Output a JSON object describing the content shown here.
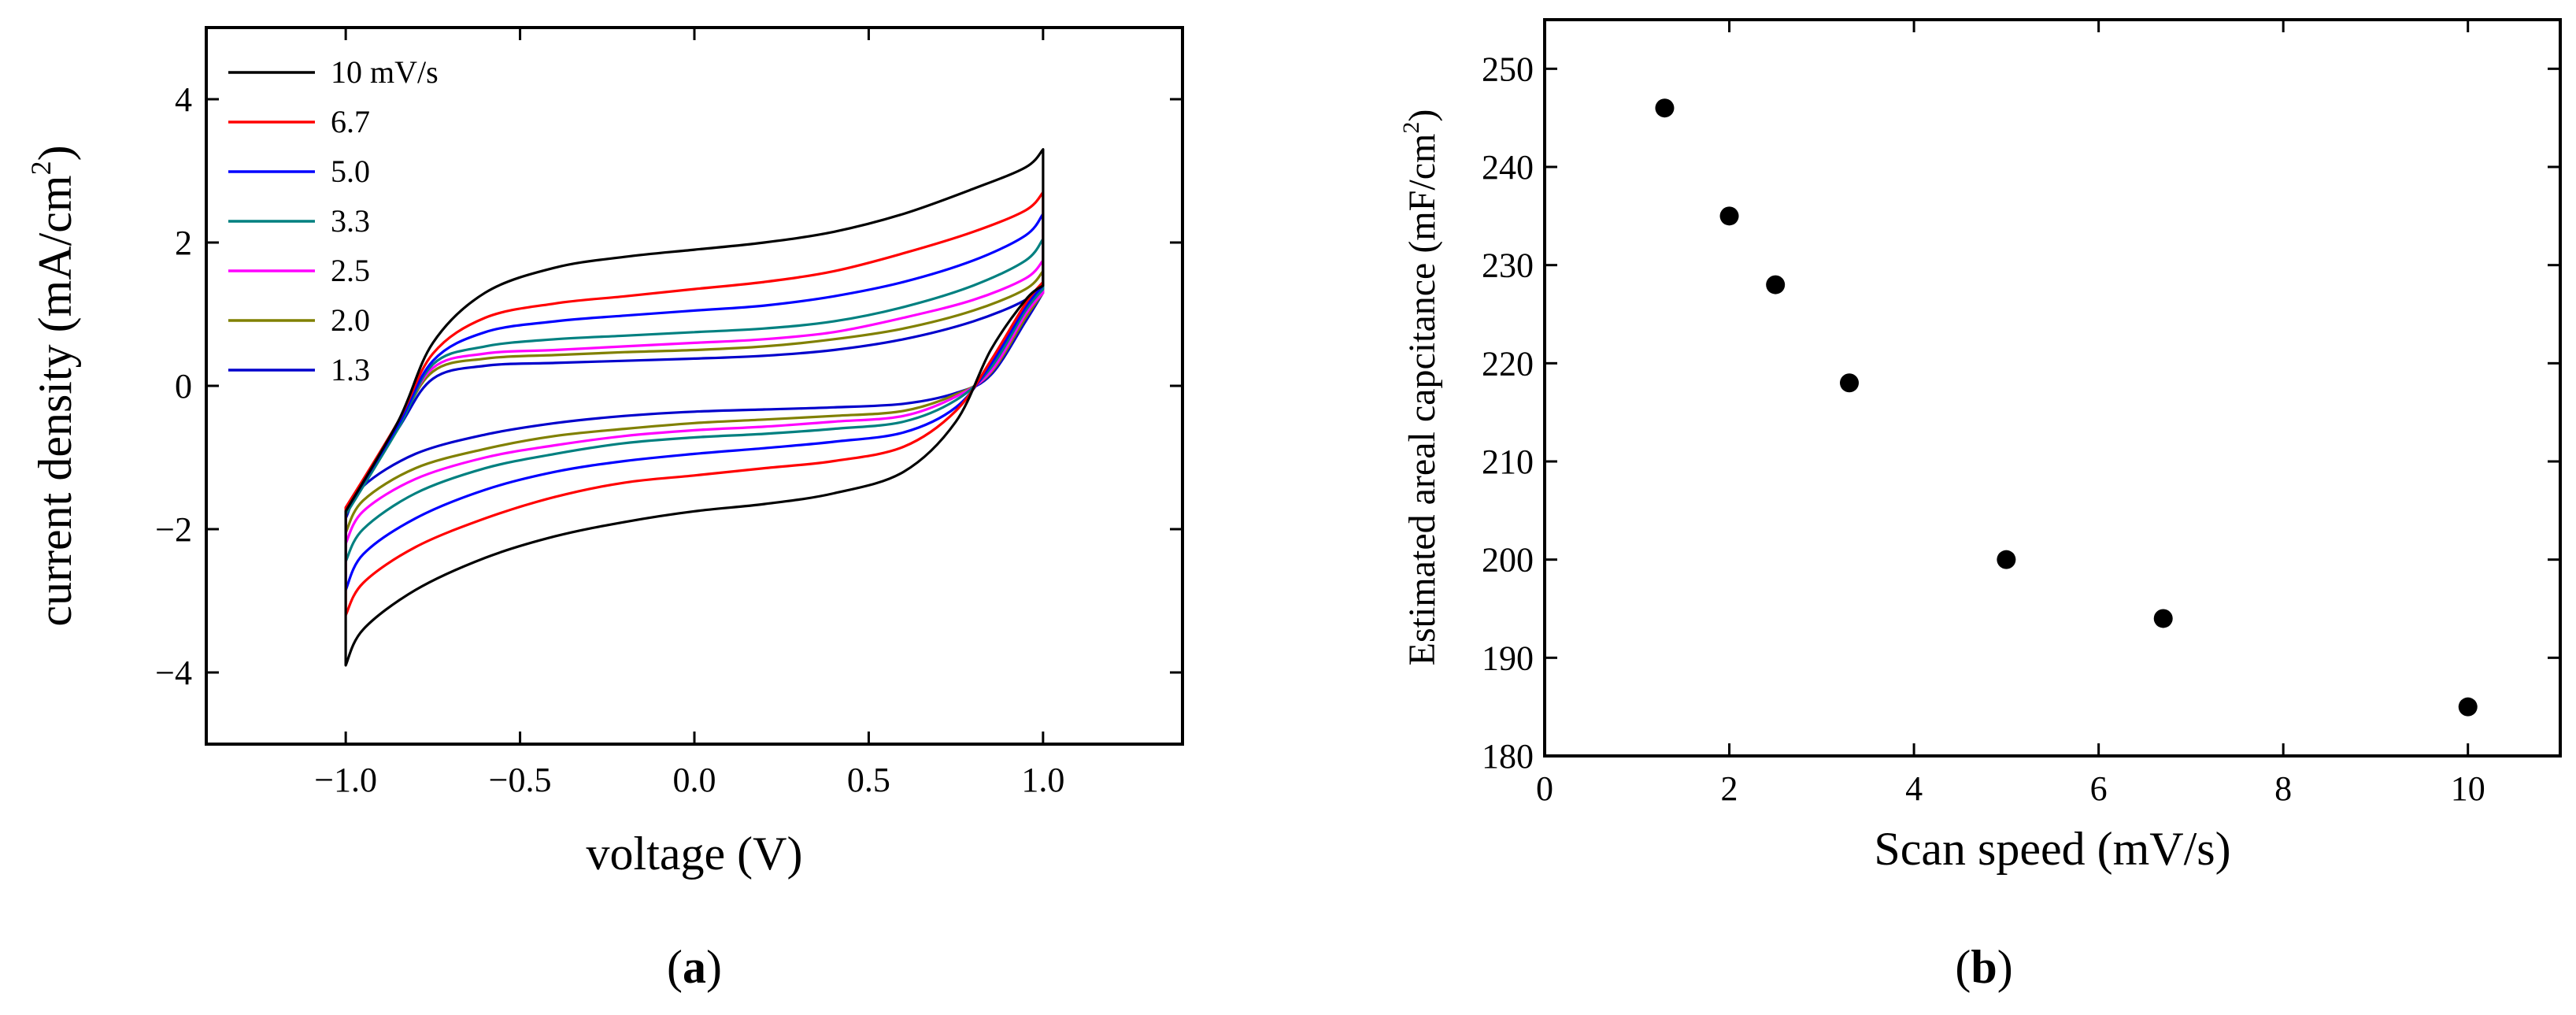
{
  "chart_data": [
    {
      "type": "line",
      "panel": "a",
      "panel_label": {
        "open": "(",
        "letter": "a",
        "close": ")"
      },
      "xlabel": "voltage (V)",
      "ylabel": {
        "text": "current density (mA/cm",
        "sup": "2",
        "close": ")"
      },
      "xlim": [
        -1.4,
        1.4
      ],
      "ylim": [
        -5,
        5
      ],
      "x_ticks": [
        {
          "value": -1.0,
          "label": "−1.0"
        },
        {
          "value": -0.5,
          "label": "−0.5"
        },
        {
          "value": 0.0,
          "label": "0.0"
        },
        {
          "value": 0.5,
          "label": "0.5"
        },
        {
          "value": 1.0,
          "label": "1.0"
        }
      ],
      "y_ticks": [
        {
          "value": -4,
          "label": "−4"
        },
        {
          "value": -2,
          "label": "−2"
        },
        {
          "value": 0,
          "label": "0"
        },
        {
          "value": 2,
          "label": "2"
        },
        {
          "value": 4,
          "label": "4"
        }
      ],
      "legend_position": "top-left",
      "series": [
        {
          "name": "10 mV/s",
          "color": "#000000",
          "upper": [
            [
              -1.0,
              -1.75
            ],
            [
              -0.85,
              -0.5
            ],
            [
              -0.75,
              0.6
            ],
            [
              -0.6,
              1.3
            ],
            [
              -0.4,
              1.65
            ],
            [
              -0.2,
              1.8
            ],
            [
              0.0,
              1.9
            ],
            [
              0.2,
              2.0
            ],
            [
              0.4,
              2.15
            ],
            [
              0.6,
              2.4
            ],
            [
              0.8,
              2.75
            ],
            [
              0.95,
              3.05
            ],
            [
              1.0,
              3.3
            ]
          ],
          "lower": [
            [
              1.0,
              1.4
            ],
            [
              0.95,
              1.2
            ],
            [
              0.85,
              0.5
            ],
            [
              0.75,
              -0.5
            ],
            [
              0.6,
              -1.2
            ],
            [
              0.4,
              -1.5
            ],
            [
              0.2,
              -1.65
            ],
            [
              0.0,
              -1.75
            ],
            [
              -0.2,
              -1.9
            ],
            [
              -0.4,
              -2.1
            ],
            [
              -0.6,
              -2.4
            ],
            [
              -0.8,
              -2.85
            ],
            [
              -0.95,
              -3.4
            ],
            [
              -1.0,
              -3.9
            ]
          ]
        },
        {
          "name": "6.7",
          "color": "#ff0000",
          "upper": [
            [
              -1.0,
              -1.7
            ],
            [
              -0.85,
              -0.5
            ],
            [
              -0.75,
              0.45
            ],
            [
              -0.6,
              0.95
            ],
            [
              -0.4,
              1.15
            ],
            [
              -0.2,
              1.25
            ],
            [
              0.0,
              1.35
            ],
            [
              0.2,
              1.45
            ],
            [
              0.4,
              1.6
            ],
            [
              0.6,
              1.85
            ],
            [
              0.8,
              2.15
            ],
            [
              0.95,
              2.45
            ],
            [
              1.0,
              2.7
            ]
          ],
          "lower": [
            [
              1.0,
              1.45
            ],
            [
              0.95,
              1.15
            ],
            [
              0.85,
              0.35
            ],
            [
              0.75,
              -0.35
            ],
            [
              0.6,
              -0.85
            ],
            [
              0.4,
              -1.05
            ],
            [
              0.2,
              -1.15
            ],
            [
              0.0,
              -1.25
            ],
            [
              -0.2,
              -1.35
            ],
            [
              -0.4,
              -1.55
            ],
            [
              -0.6,
              -1.85
            ],
            [
              -0.8,
              -2.25
            ],
            [
              -0.95,
              -2.75
            ],
            [
              -1.0,
              -3.2
            ]
          ]
        },
        {
          "name": "5.0",
          "color": "#0000ff",
          "upper": [
            [
              -1.0,
              -1.75
            ],
            [
              -0.85,
              -0.55
            ],
            [
              -0.75,
              0.35
            ],
            [
              -0.6,
              0.75
            ],
            [
              -0.4,
              0.9
            ],
            [
              -0.2,
              0.98
            ],
            [
              0.0,
              1.05
            ],
            [
              0.2,
              1.12
            ],
            [
              0.4,
              1.25
            ],
            [
              0.6,
              1.45
            ],
            [
              0.8,
              1.75
            ],
            [
              0.95,
              2.1
            ],
            [
              1.0,
              2.4
            ]
          ],
          "lower": [
            [
              1.0,
              1.4
            ],
            [
              0.95,
              1.1
            ],
            [
              0.85,
              0.3
            ],
            [
              0.75,
              -0.3
            ],
            [
              0.6,
              -0.65
            ],
            [
              0.4,
              -0.78
            ],
            [
              0.2,
              -0.87
            ],
            [
              0.0,
              -0.95
            ],
            [
              -0.2,
              -1.05
            ],
            [
              -0.4,
              -1.2
            ],
            [
              -0.6,
              -1.45
            ],
            [
              -0.8,
              -1.85
            ],
            [
              -0.95,
              -2.35
            ],
            [
              -1.0,
              -2.85
            ]
          ]
        },
        {
          "name": "3.3",
          "color": "#008080",
          "upper": [
            [
              -1.0,
              -1.8
            ],
            [
              -0.85,
              -0.6
            ],
            [
              -0.75,
              0.3
            ],
            [
              -0.6,
              0.55
            ],
            [
              -0.4,
              0.65
            ],
            [
              -0.2,
              0.7
            ],
            [
              0.0,
              0.75
            ],
            [
              0.2,
              0.8
            ],
            [
              0.4,
              0.9
            ],
            [
              0.6,
              1.1
            ],
            [
              0.8,
              1.4
            ],
            [
              0.95,
              1.75
            ],
            [
              1.0,
              2.05
            ]
          ],
          "lower": [
            [
              1.0,
              1.35
            ],
            [
              0.95,
              1.05
            ],
            [
              0.85,
              0.25
            ],
            [
              0.75,
              -0.2
            ],
            [
              0.6,
              -0.5
            ],
            [
              0.4,
              -0.6
            ],
            [
              0.2,
              -0.67
            ],
            [
              0.0,
              -0.72
            ],
            [
              -0.2,
              -0.8
            ],
            [
              -0.4,
              -0.95
            ],
            [
              -0.6,
              -1.15
            ],
            [
              -0.8,
              -1.5
            ],
            [
              -0.95,
              -2.0
            ],
            [
              -1.0,
              -2.45
            ]
          ]
        },
        {
          "name": "2.5",
          "color": "#ff00ff",
          "upper": [
            [
              -1.0,
              -1.7
            ],
            [
              -0.85,
              -0.55
            ],
            [
              -0.75,
              0.25
            ],
            [
              -0.6,
              0.45
            ],
            [
              -0.4,
              0.5
            ],
            [
              -0.2,
              0.55
            ],
            [
              0.0,
              0.6
            ],
            [
              0.2,
              0.65
            ],
            [
              0.4,
              0.75
            ],
            [
              0.6,
              0.95
            ],
            [
              0.8,
              1.2
            ],
            [
              0.95,
              1.5
            ],
            [
              1.0,
              1.75
            ]
          ],
          "lower": [
            [
              1.0,
              1.3
            ],
            [
              0.95,
              1.0
            ],
            [
              0.85,
              0.2
            ],
            [
              0.75,
              -0.15
            ],
            [
              0.6,
              -0.42
            ],
            [
              0.4,
              -0.5
            ],
            [
              0.2,
              -0.57
            ],
            [
              0.0,
              -0.62
            ],
            [
              -0.2,
              -0.7
            ],
            [
              -0.4,
              -0.83
            ],
            [
              -0.6,
              -1.0
            ],
            [
              -0.8,
              -1.3
            ],
            [
              -0.95,
              -1.75
            ],
            [
              -1.0,
              -2.2
            ]
          ]
        },
        {
          "name": "2.0",
          "color": "#808000",
          "upper": [
            [
              -1.0,
              -1.7
            ],
            [
              -0.85,
              -0.55
            ],
            [
              -0.75,
              0.2
            ],
            [
              -0.6,
              0.38
            ],
            [
              -0.4,
              0.43
            ],
            [
              -0.2,
              0.47
            ],
            [
              0.0,
              0.5
            ],
            [
              0.2,
              0.55
            ],
            [
              0.4,
              0.65
            ],
            [
              0.6,
              0.8
            ],
            [
              0.8,
              1.05
            ],
            [
              0.95,
              1.35
            ],
            [
              1.0,
              1.6
            ]
          ],
          "lower": [
            [
              1.0,
              1.3
            ],
            [
              0.95,
              0.95
            ],
            [
              0.85,
              0.18
            ],
            [
              0.75,
              -0.12
            ],
            [
              0.6,
              -0.35
            ],
            [
              0.4,
              -0.42
            ],
            [
              0.2,
              -0.47
            ],
            [
              0.0,
              -0.52
            ],
            [
              -0.2,
              -0.6
            ],
            [
              -0.4,
              -0.7
            ],
            [
              -0.6,
              -0.88
            ],
            [
              -0.8,
              -1.15
            ],
            [
              -0.95,
              -1.6
            ],
            [
              -1.0,
              -2.05
            ]
          ]
        },
        {
          "name": "1.3",
          "color": "#0000cc",
          "upper": [
            [
              -1.0,
              -1.75
            ],
            [
              -0.85,
              -0.6
            ],
            [
              -0.75,
              0.1
            ],
            [
              -0.6,
              0.28
            ],
            [
              -0.4,
              0.32
            ],
            [
              -0.2,
              0.35
            ],
            [
              0.0,
              0.38
            ],
            [
              0.2,
              0.42
            ],
            [
              0.4,
              0.5
            ],
            [
              0.6,
              0.65
            ],
            [
              0.8,
              0.9
            ],
            [
              0.95,
              1.2
            ],
            [
              1.0,
              1.45
            ]
          ],
          "lower": [
            [
              1.0,
              1.3
            ],
            [
              0.95,
              0.9
            ],
            [
              0.85,
              0.15
            ],
            [
              0.75,
              -0.1
            ],
            [
              0.6,
              -0.25
            ],
            [
              0.4,
              -0.3
            ],
            [
              0.2,
              -0.33
            ],
            [
              0.0,
              -0.36
            ],
            [
              -0.2,
              -0.42
            ],
            [
              -0.4,
              -0.52
            ],
            [
              -0.6,
              -0.68
            ],
            [
              -0.8,
              -0.95
            ],
            [
              -0.95,
              -1.4
            ],
            [
              -1.0,
              -1.85
            ]
          ]
        }
      ]
    },
    {
      "type": "scatter",
      "panel": "b",
      "panel_label": {
        "open": "(",
        "letter": "b",
        "close": ")"
      },
      "xlabel": "Scan speed (mV/s)",
      "ylabel": {
        "text": "Estimated areal capcitance (mF/cm",
        "sup": "2",
        "close": ")"
      },
      "xlim": [
        0,
        11
      ],
      "ylim": [
        180,
        255
      ],
      "x_ticks": [
        {
          "value": 0,
          "label": "0"
        },
        {
          "value": 2,
          "label": "2"
        },
        {
          "value": 4,
          "label": "4"
        },
        {
          "value": 6,
          "label": "6"
        },
        {
          "value": 8,
          "label": "8"
        },
        {
          "value": 10,
          "label": "10"
        }
      ],
      "y_ticks": [
        {
          "value": 180,
          "label": "180"
        },
        {
          "value": 190,
          "label": "190"
        },
        {
          "value": 200,
          "label": "200"
        },
        {
          "value": 210,
          "label": "210"
        },
        {
          "value": 220,
          "label": "220"
        },
        {
          "value": 230,
          "label": "230"
        },
        {
          "value": 240,
          "label": "240"
        },
        {
          "value": 250,
          "label": "250"
        }
      ],
      "marker_color": "#000000",
      "points": [
        {
          "x": 1.3,
          "y": 246
        },
        {
          "x": 2.0,
          "y": 235
        },
        {
          "x": 2.5,
          "y": 228
        },
        {
          "x": 3.3,
          "y": 218
        },
        {
          "x": 5.0,
          "y": 200
        },
        {
          "x": 6.7,
          "y": 194
        },
        {
          "x": 10.0,
          "y": 185
        }
      ]
    }
  ]
}
